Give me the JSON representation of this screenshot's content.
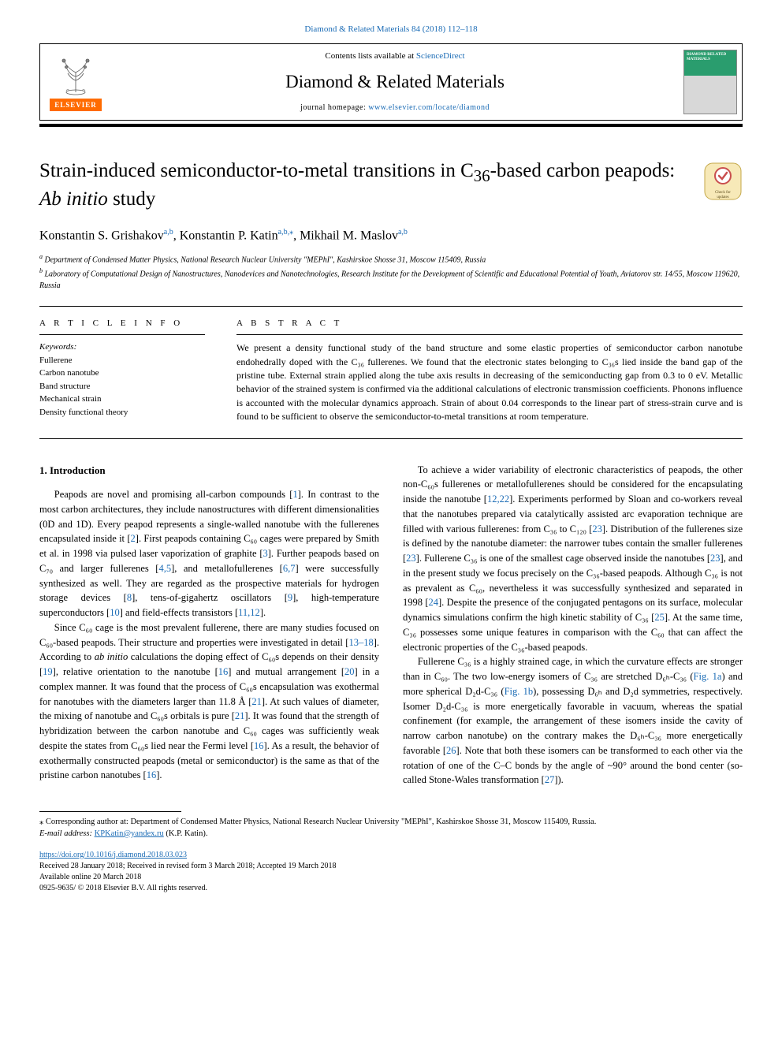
{
  "top_citation": "Diamond & Related Materials 84 (2018) 112–118",
  "header": {
    "contents_prefix": "Contents lists available at ",
    "contents_link": "ScienceDirect",
    "journal_name": "Diamond & Related Materials",
    "homepage_prefix": "journal homepage: ",
    "homepage_link": "www.elsevier.com/locate/diamond",
    "elsevier_label": "ELSEVIER",
    "cover_text": "DIAMOND RELATED MATERIALS"
  },
  "check_badge": {
    "label": "Check for updates",
    "bg_color": "#f7e9b8",
    "accent_color": "#c94f4f"
  },
  "article": {
    "title_pre": "Strain-induced semiconductor-to-metal transitions in C",
    "title_sub": "36",
    "title_mid": "-based carbon peapods: ",
    "title_italic": "Ab initio",
    "title_post": " study"
  },
  "authors": {
    "a1": "Konstantin S. Grishakov",
    "a1_sup": "a,b",
    "a2": "Konstantin P. Katin",
    "a2_sup": "a,b,",
    "a2_star": "⁎",
    "a3": "Mikhail M. Maslov",
    "a3_sup": "a,b"
  },
  "affiliations": {
    "a": "Department of Condensed Matter Physics, National Research Nuclear University \"MEPhI\", Kashirskoe Shosse 31, Moscow 115409, Russia",
    "b": "Laboratory of Computational Design of Nanostructures, Nanodevices and Nanotechnologies, Research Institute for the Development of Scientific and Educational Potential of Youth, Aviatorov str. 14/55, Moscow 119620, Russia"
  },
  "meta": {
    "info_heading": "A R T I C L E  I N F O",
    "abstract_heading": "A B S T R A C T",
    "keywords_label": "Keywords:",
    "keywords": [
      "Fullerene",
      "Carbon nanotube",
      "Band structure",
      "Mechanical strain",
      "Density functional theory"
    ]
  },
  "abstract": "We present a density functional study of the band structure and some elastic properties of semiconductor carbon nanotube endohedrally doped with the C₃₆ fullerenes. We found that the electronic states belonging to C₃₆s lied inside the band gap of the pristine tube. External strain applied along the tube axis results in decreasing of the semiconducting gap from 0.3 to 0 eV. Metallic behavior of the strained system is confirmed via the additional calculations of electronic transmission coefficients. Phonons influence is accounted with the molecular dynamics approach. Strain of about 0.04 corresponds to the linear part of stress-strain curve and is found to be sufficient to observe the semiconductor-to-metal transitions at room temperature.",
  "intro_heading": "1. Introduction",
  "paragraphs": {
    "p1": "Peapods are novel and promising all-carbon compounds [1]. In contrast to the most carbon architectures, they include nanostructures with different dimensionalities (0D and 1D). Every peapod represents a single-walled nanotube with the fullerenes encapsulated inside it [2]. First peapods containing C₆₀ cages were prepared by Smith et al. in 1998 via pulsed laser vaporization of graphite [3]. Further peapods based on C₇₀ and larger fullerenes [4,5], and metallofullerenes [6,7] were successfully synthesized as well. They are regarded as the prospective materials for hydrogen storage devices [8], tens-of-gigahertz oscillators [9], high-temperature superconductors [10] and field-effects transistors [11,12].",
    "p2": "Since C₆₀ cage is the most prevalent fullerene, there are many studies focused on C₆₀-based peapods. Their structure and properties were investigated in detail [13–18]. According to ab initio calculations the doping effect of C₆₀s depends on their density [19], relative orientation to the nanotube [16] and mutual arrangement [20] in a complex manner. It was found that the process of C₆₀s encapsulation was exothermal for nanotubes with the diameters larger than 11.8 Å [21]. At such values of diameter, the mixing of nanotube and C₆₀s orbitals is pure [21]. It was found that the strength of hybridization between the carbon nanotube and C₆₀ cages was sufficiently weak despite the states from C₆₀s lied near the Fermi level [16]. As a result, the behavior of exothermally constructed peapods (metal or semiconductor) is the same as that of the pristine carbon nanotubes [16].",
    "p3": "To achieve a wider variability of electronic characteristics of peapods, the other non-C₆₀s fullerenes or metallofullerenes should be considered for the encapsulating inside the nanotube [12,22]. Experiments performed by Sloan and co-workers reveal that the nanotubes prepared via catalytically assisted arc evaporation technique are filled with various fullerenes: from C₃₆ to C₁₂₀ [23]. Distribution of the fullerenes size is defined by the nanotube diameter: the narrower tubes contain the smaller fullerenes [23]. Fullerene C₃₆ is one of the smallest cage observed inside the nanotubes [23], and in the present study we focus precisely on the C₃₆-based peapods. Although C₃₆ is not as prevalent as C₆₀, nevertheless it was successfully synthesized and separated in 1998 [24]. Despite the presence of the conjugated pentagons on its surface, molecular dynamics simulations confirm the high kinetic stability of C₃₆ [25]. At the same time, C₃₆ possesses some unique features in comparison with the C₆₀ that can affect the electronic properties of the C₃₆-based peapods.",
    "p4": "Fullerene C₃₆ is a highly strained cage, in which the curvature effects are stronger than in C₆₀. The two low-energy isomers of C₃₆ are stretched D₆ₕ-C₃₆ (Fig. 1a) and more spherical D₂d-C₃₆ (Fig. 1b), possessing D₆ₕ and D₂d symmetries, respectively. Isomer D₂d-C₃₆ is more energetically favorable in vacuum, whereas the spatial confinement (for example, the arrangement of these isomers inside the cavity of narrow carbon nanotube) on the contrary makes the D₆ₕ-C₃₆ more energetically favorable [26]. Note that both these isomers can be transformed to each other via the rotation of one of the C–C bonds by the angle of ~90° around the bond center (so-called Stone-Wales transformation [27])."
  },
  "footnote": {
    "corr": "⁎ Corresponding author at: Department of Condensed Matter Physics, National Research Nuclear University \"MEPhI\", Kashirskoe Shosse 31, Moscow 115409, Russia.",
    "email_label": "E-mail address: ",
    "email": "KPKatin@yandex.ru",
    "email_suffix": " (K.P. Katin)."
  },
  "doi": {
    "link": "https://doi.org/10.1016/j.diamond.2018.03.023",
    "received": "Received 28 January 2018; Received in revised form 3 March 2018; Accepted 19 March 2018",
    "available": "Available online 20 March 2018",
    "copyright": "0925-9635/ © 2018 Elsevier B.V. All rights reserved."
  },
  "colors": {
    "link": "#1a6bb5",
    "elsevier_orange": "#ff6b00",
    "cover_green": "#2a9d6e"
  }
}
